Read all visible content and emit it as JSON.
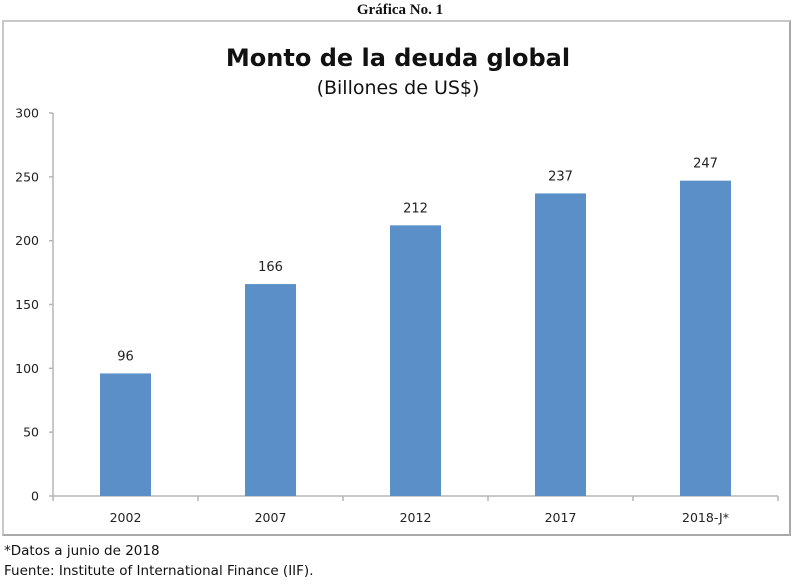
{
  "caption": "Gráfica No. 1",
  "chart_data": {
    "type": "bar",
    "title": "Monto de la deuda global",
    "subtitle": "(Billones de US$)",
    "xlabel": "",
    "ylabel": "",
    "categories": [
      "2002",
      "2007",
      "2012",
      "2017",
      "2018-J*"
    ],
    "values": [
      96,
      166,
      212,
      237,
      247
    ],
    "data_labels": [
      "96",
      "166",
      "212",
      "237",
      "247"
    ],
    "ylim": [
      0,
      300
    ],
    "yticks": [
      0,
      50,
      100,
      150,
      200,
      250,
      300
    ],
    "ytick_labels": [
      "0",
      "50",
      "100",
      "150",
      "200",
      "250",
      "300"
    ],
    "grid": false,
    "legend": "none",
    "bar_color": "#5b8fc7",
    "axis_color": "#b5b5b5"
  },
  "notes": {
    "footnote": "*Datos a junio de 2018",
    "source": "Fuente: Institute of International Finance (IIF)."
  }
}
